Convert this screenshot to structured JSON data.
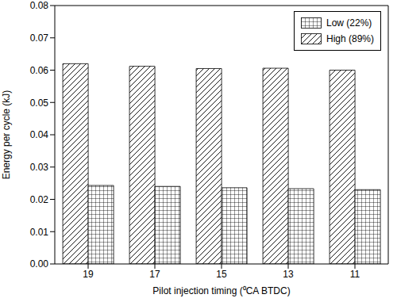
{
  "chart_data": {
    "type": "bar",
    "x_label": "Pilot injection timing (⁰CA BTDC)",
    "y_label": "Energy per cycle (kJ)",
    "categories": [
      "19",
      "17",
      "15",
      "13",
      "11"
    ],
    "series": [
      {
        "name": "High (89%)",
        "color": "#000000",
        "values": [
          0.062,
          0.0612,
          0.0605,
          0.0606,
          0.06
        ]
      },
      {
        "name": "Low (22%)",
        "color": "#000000",
        "values": [
          0.0243,
          0.024,
          0.0236,
          0.0233,
          0.023
        ]
      }
    ],
    "ylim": [
      0,
      0.08
    ],
    "yticks": [
      {
        "value": 0,
        "label": "0.00"
      },
      {
        "value": 0.01,
        "label": "0.01"
      },
      {
        "value": 0.02,
        "label": "0.02"
      },
      {
        "value": 0.03,
        "label": "0.03"
      },
      {
        "value": 0.04,
        "label": "0.04"
      },
      {
        "value": 0.05,
        "label": "0.05"
      },
      {
        "value": 0.06,
        "label": "0.06"
      },
      {
        "value": 0.07,
        "label": "0.07"
      },
      {
        "value": 0.08,
        "label": "0.08"
      }
    ],
    "grid": false,
    "legend": "upper right"
  }
}
